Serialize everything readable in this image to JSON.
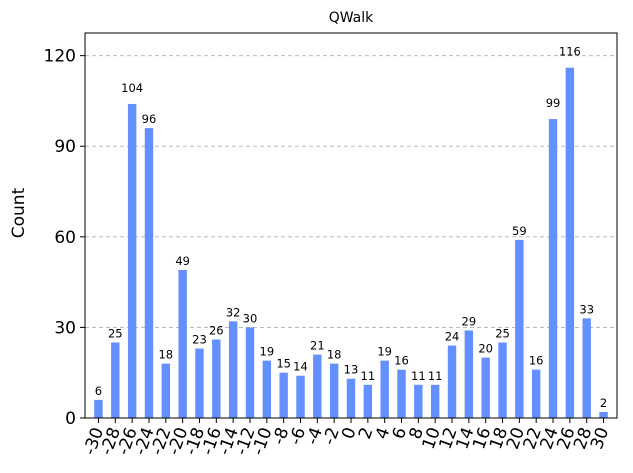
{
  "chart_data": {
    "type": "bar",
    "title": "QWalk",
    "xlabel": "",
    "ylabel": "Count",
    "ylim": [
      0,
      127.5
    ],
    "yticks": [
      0,
      30,
      60,
      90,
      120
    ],
    "grid": "y-dashed",
    "bar_color": "#648fff",
    "categories": [
      "-30",
      "-28",
      "-26",
      "-24",
      "-22",
      "-20",
      "-18",
      "-16",
      "-14",
      "-12",
      "-10",
      "-8",
      "-6",
      "-4",
      "-2",
      "0",
      "2",
      "4",
      "6",
      "8",
      "10",
      "12",
      "14",
      "16",
      "18",
      "20",
      "22",
      "24",
      "26",
      "28",
      "30"
    ],
    "values": [
      6,
      25,
      104,
      96,
      18,
      49,
      23,
      26,
      32,
      30,
      19,
      15,
      14,
      21,
      18,
      13,
      11,
      19,
      16,
      11,
      11,
      24,
      29,
      20,
      25,
      59,
      16,
      99,
      116,
      33,
      2
    ]
  }
}
